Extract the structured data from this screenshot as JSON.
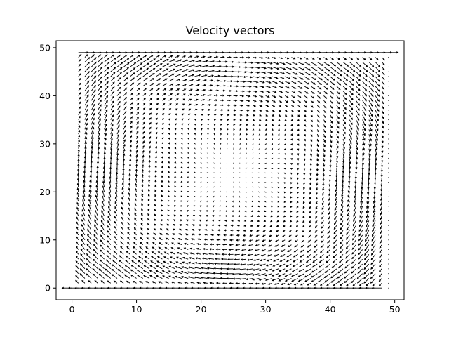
{
  "chart_data": {
    "type": "quiver",
    "title": "Velocity vectors",
    "xlabel": "",
    "ylabel": "",
    "xlim": [
      -2.45,
      51.45
    ],
    "ylim": [
      -2.45,
      51.45
    ],
    "xticks": [
      0,
      10,
      20,
      30,
      40,
      50
    ],
    "yticks": [
      0,
      10,
      20,
      30,
      40,
      50
    ],
    "xtick_labels": [
      "0",
      "10",
      "20",
      "30",
      "40",
      "50"
    ],
    "ytick_labels": [
      "0",
      "10",
      "20",
      "30",
      "40",
      "50"
    ],
    "grid": false,
    "legend": "none",
    "field": {
      "description": "lid-driven cavity style circulation on a 50x50 grid",
      "grid_x": [
        0,
        49,
        1
      ],
      "grid_y": [
        0,
        49,
        1
      ],
      "lid_top_velocity_x": 1.0,
      "bottom_row_velocity_x": -1.0,
      "rotation": "clockwise",
      "vortex_center": [
        24.5,
        24.5
      ]
    },
    "colors": {
      "arrows": "#000000",
      "frame": "#000000"
    }
  }
}
